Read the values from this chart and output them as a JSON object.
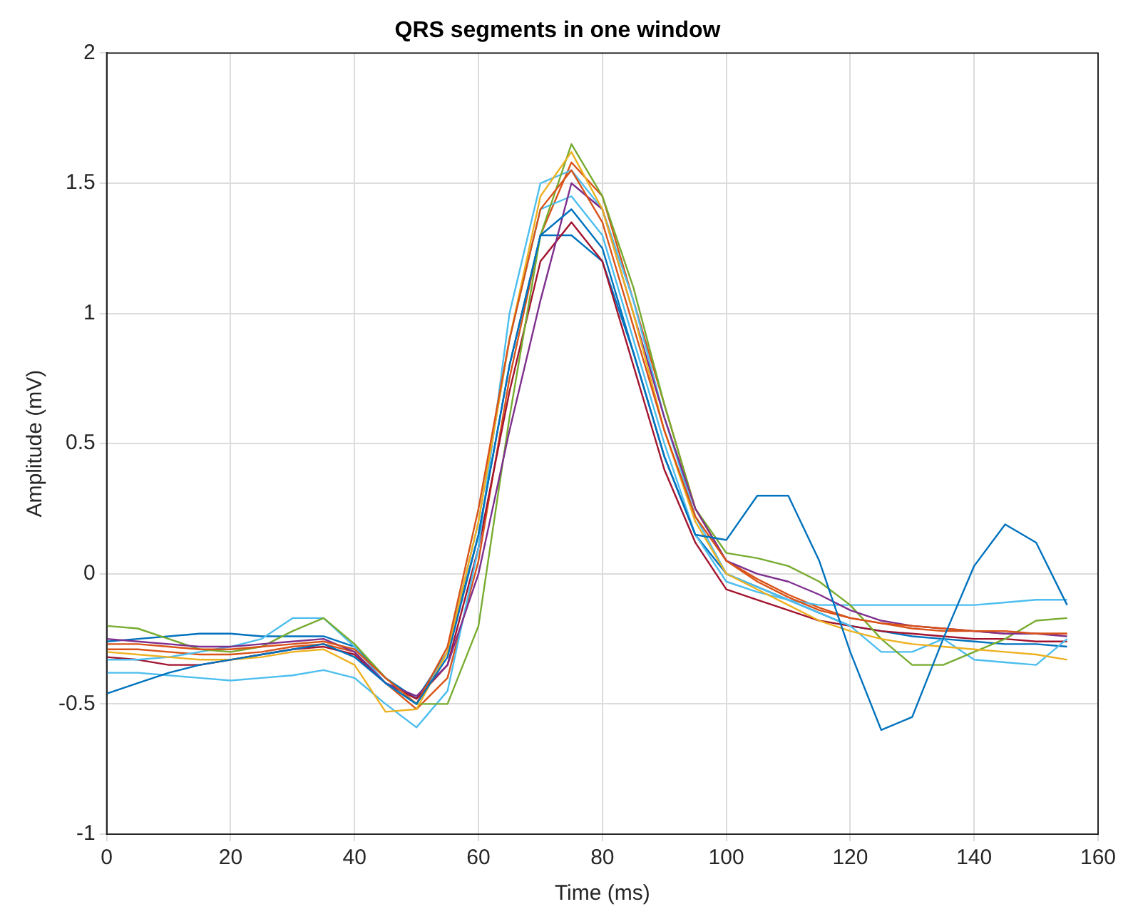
{
  "chart_data": {
    "type": "line",
    "title": "QRS segments in one window",
    "xlabel": "Time (ms)",
    "ylabel": "Amplitude (mV)",
    "x": [
      0,
      5,
      10,
      15,
      20,
      25,
      30,
      35,
      40,
      45,
      50,
      55,
      60,
      65,
      70,
      75,
      80,
      85,
      90,
      95,
      100,
      105,
      110,
      115,
      120,
      125,
      130,
      135,
      140,
      145,
      150,
      155
    ],
    "series": [
      {
        "color": "#0072bd",
        "values": [
          -0.46,
          -0.42,
          -0.38,
          -0.35,
          -0.33,
          -0.31,
          -0.29,
          -0.27,
          -0.32,
          -0.42,
          -0.5,
          -0.32,
          0.15,
          0.8,
          1.3,
          1.4,
          1.25,
          0.85,
          0.45,
          0.15,
          0.13,
          0.3,
          0.3,
          0.05,
          -0.3,
          -0.6,
          -0.55,
          -0.25,
          0.03,
          0.19,
          0.12,
          -0.12
        ]
      },
      {
        "color": "#d95319",
        "values": [
          -0.27,
          -0.27,
          -0.28,
          -0.29,
          -0.29,
          -0.28,
          -0.27,
          -0.26,
          -0.29,
          -0.4,
          -0.5,
          -0.28,
          0.25,
          0.9,
          1.4,
          1.55,
          1.35,
          0.95,
          0.55,
          0.22,
          0.05,
          -0.03,
          -0.09,
          -0.14,
          -0.17,
          -0.19,
          -0.2,
          -0.21,
          -0.22,
          -0.22,
          -0.23,
          -0.23
        ]
      },
      {
        "color": "#edb120",
        "values": [
          -0.3,
          -0.31,
          -0.32,
          -0.33,
          -0.33,
          -0.32,
          -0.3,
          -0.29,
          -0.35,
          -0.53,
          -0.52,
          -0.3,
          0.2,
          0.9,
          1.45,
          1.62,
          1.4,
          1.0,
          0.55,
          0.2,
          0.0,
          -0.06,
          -0.12,
          -0.18,
          -0.22,
          -0.25,
          -0.27,
          -0.28,
          -0.29,
          -0.3,
          -0.31,
          -0.33
        ]
      },
      {
        "color": "#7e2f8e",
        "values": [
          -0.25,
          -0.26,
          -0.27,
          -0.28,
          -0.28,
          -0.27,
          -0.26,
          -0.25,
          -0.3,
          -0.42,
          -0.47,
          -0.35,
          0.0,
          0.55,
          1.05,
          1.5,
          1.4,
          1.0,
          0.6,
          0.25,
          0.05,
          0.0,
          -0.03,
          -0.08,
          -0.14,
          -0.18,
          -0.2,
          -0.21,
          -0.22,
          -0.23,
          -0.23,
          -0.24
        ]
      },
      {
        "color": "#77ac30",
        "values": [
          -0.2,
          -0.21,
          -0.25,
          -0.29,
          -0.3,
          -0.28,
          -0.22,
          -0.17,
          -0.27,
          -0.4,
          -0.5,
          -0.5,
          -0.2,
          0.6,
          1.3,
          1.65,
          1.45,
          1.1,
          0.65,
          0.25,
          0.08,
          0.06,
          0.03,
          -0.03,
          -0.12,
          -0.25,
          -0.35,
          -0.35,
          -0.3,
          -0.25,
          -0.18,
          -0.17
        ]
      },
      {
        "color": "#4dbeee",
        "values": [
          -0.38,
          -0.38,
          -0.39,
          -0.4,
          -0.41,
          -0.4,
          -0.39,
          -0.37,
          -0.4,
          -0.5,
          -0.59,
          -0.45,
          0.1,
          1.0,
          1.5,
          1.55,
          1.4,
          1.05,
          0.6,
          0.22,
          0.0,
          -0.05,
          -0.1,
          -0.15,
          -0.2,
          -0.3,
          -0.3,
          -0.25,
          -0.33,
          -0.34,
          -0.35,
          -0.25
        ]
      },
      {
        "color": "#4dbeee",
        "values": [
          -0.33,
          -0.33,
          -0.32,
          -0.3,
          -0.28,
          -0.25,
          -0.17,
          -0.17,
          -0.28,
          -0.42,
          -0.5,
          -0.3,
          0.2,
          0.9,
          1.4,
          1.45,
          1.3,
          0.9,
          0.5,
          0.15,
          -0.03,
          -0.07,
          -0.1,
          -0.12,
          -0.12,
          -0.12,
          -0.12,
          -0.12,
          -0.12,
          -0.11,
          -0.1,
          -0.1
        ]
      },
      {
        "color": "#a2142f",
        "values": [
          -0.32,
          -0.33,
          -0.35,
          -0.35,
          -0.33,
          -0.31,
          -0.29,
          -0.28,
          -0.31,
          -0.42,
          -0.48,
          -0.35,
          0.1,
          0.7,
          1.2,
          1.35,
          1.2,
          0.8,
          0.4,
          0.12,
          -0.06,
          -0.1,
          -0.14,
          -0.18,
          -0.2,
          -0.22,
          -0.23,
          -0.24,
          -0.25,
          -0.25,
          -0.26,
          -0.26
        ]
      },
      {
        "color": "#0072bd",
        "values": [
          -0.26,
          -0.25,
          -0.24,
          -0.23,
          -0.23,
          -0.24,
          -0.24,
          -0.24,
          -0.28,
          -0.4,
          -0.48,
          -0.3,
          0.15,
          0.8,
          1.3,
          1.3,
          1.2,
          0.85,
          0.45,
          0.15,
          0.0,
          -0.05,
          -0.1,
          -0.15,
          -0.2,
          -0.22,
          -0.24,
          -0.25,
          -0.26,
          -0.27,
          -0.27,
          -0.28
        ]
      },
      {
        "color": "#d95319",
        "values": [
          -0.29,
          -0.29,
          -0.3,
          -0.31,
          -0.31,
          -0.3,
          -0.28,
          -0.27,
          -0.3,
          -0.42,
          -0.52,
          -0.4,
          0.05,
          0.75,
          1.3,
          1.58,
          1.45,
          1.05,
          0.65,
          0.25,
          0.05,
          -0.02,
          -0.08,
          -0.13,
          -0.17,
          -0.19,
          -0.21,
          -0.22,
          -0.22,
          -0.23,
          -0.23,
          -0.23
        ]
      }
    ],
    "xlim": [
      0,
      160
    ],
    "xticks": [
      0,
      20,
      40,
      60,
      80,
      100,
      120,
      140,
      160
    ],
    "ylim": [
      -1,
      2
    ],
    "yticks": [
      -1,
      -0.5,
      0,
      0.5,
      1,
      1.5,
      2
    ],
    "grid": true
  }
}
